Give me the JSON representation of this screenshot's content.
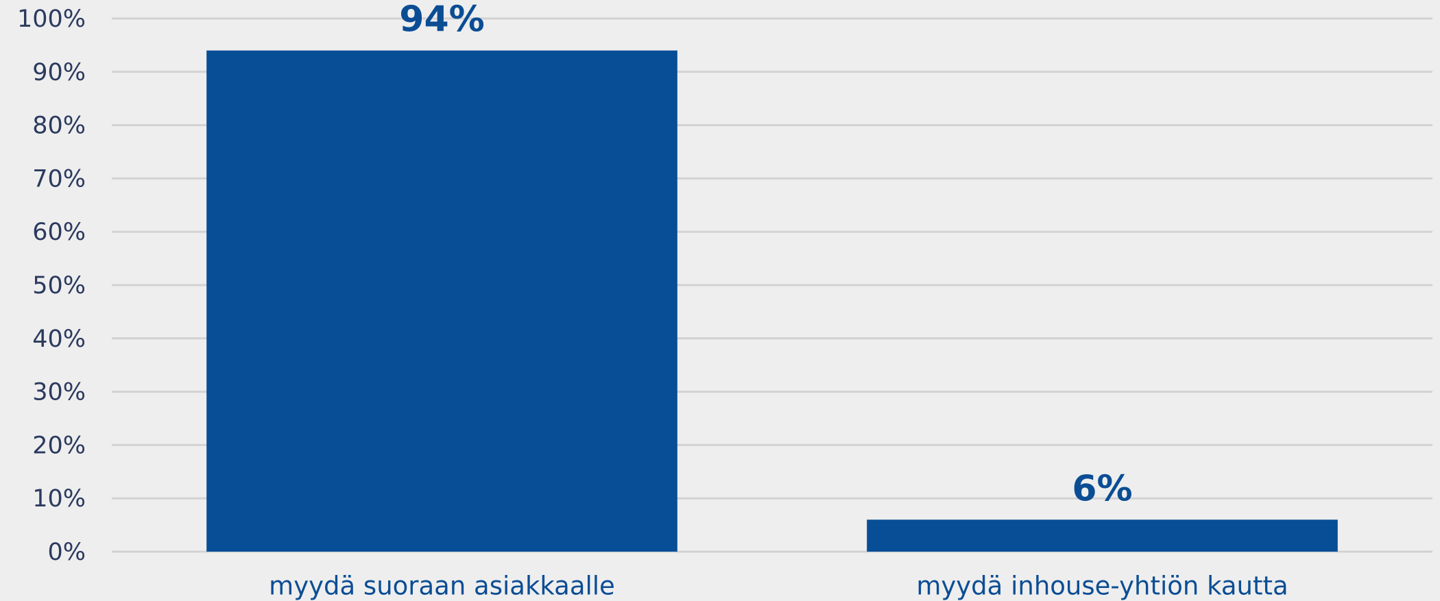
{
  "chart_data": {
    "type": "bar",
    "categories": [
      "myydä suoraan asiakkaalle",
      "myydä inhouse-yhtiön kautta"
    ],
    "values": [
      94,
      6
    ],
    "value_labels": [
      "94%",
      "6%"
    ],
    "color": "#084e96",
    "ylim": [
      0,
      100
    ],
    "yticks": [
      {
        "value": 0,
        "label": "0%"
      },
      {
        "value": 10,
        "label": "10%"
      },
      {
        "value": 20,
        "label": "20%"
      },
      {
        "value": 30,
        "label": "30%"
      },
      {
        "value": 40,
        "label": "40%"
      },
      {
        "value": 50,
        "label": "50%"
      },
      {
        "value": 60,
        "label": "60%"
      },
      {
        "value": 70,
        "label": "70%"
      },
      {
        "value": 80,
        "label": "80%"
      },
      {
        "value": 90,
        "label": "90%"
      },
      {
        "value": 100,
        "label": "100%"
      }
    ],
    "grid": true
  }
}
